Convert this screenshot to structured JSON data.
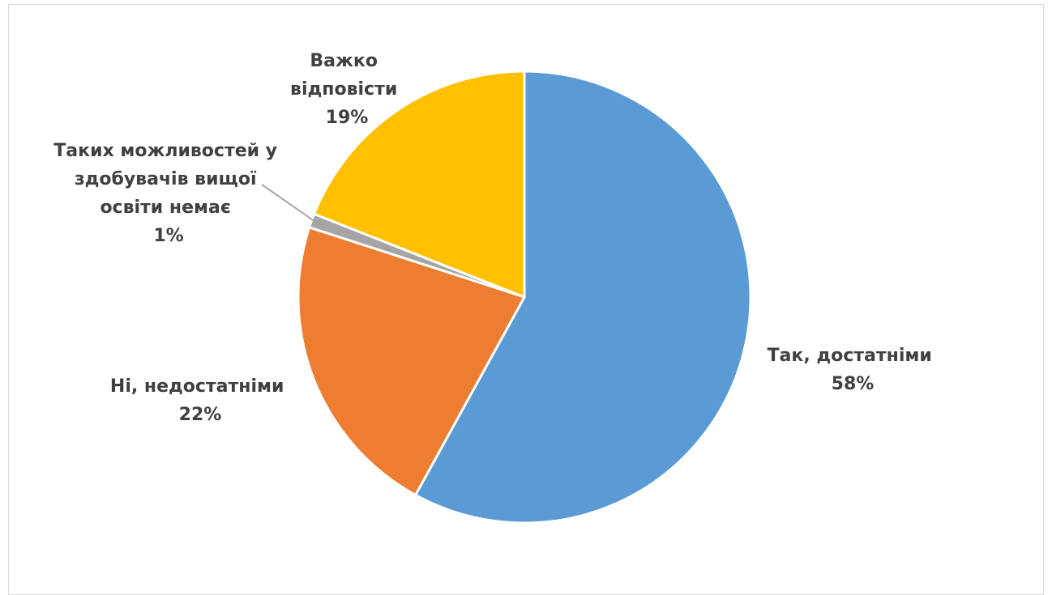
{
  "chart_data": {
    "type": "pie",
    "title": "",
    "slices": [
      {
        "label_lines": [
          "Так, достатніми"
        ],
        "pct_label": "58%",
        "value": 58,
        "color": "#5B9BD5"
      },
      {
        "label_lines": [
          "Ні, недостатніми"
        ],
        "pct_label": "22%",
        "value": 22,
        "color": "#ED7D31"
      },
      {
        "label_lines": [
          "Таких можливостей у",
          "здобувачів вищої",
          "освіти немає"
        ],
        "pct_label": "1%",
        "value": 1,
        "color": "#A5A5A5"
      },
      {
        "label_lines": [
          "Важко",
          "відповісти"
        ],
        "pct_label": "19%",
        "value": 19,
        "color": "#FFC000"
      }
    ],
    "start_angle_deg": 0,
    "direction": "clockwise",
    "legend": "none",
    "data_labels": "outside, category name and percentage"
  }
}
